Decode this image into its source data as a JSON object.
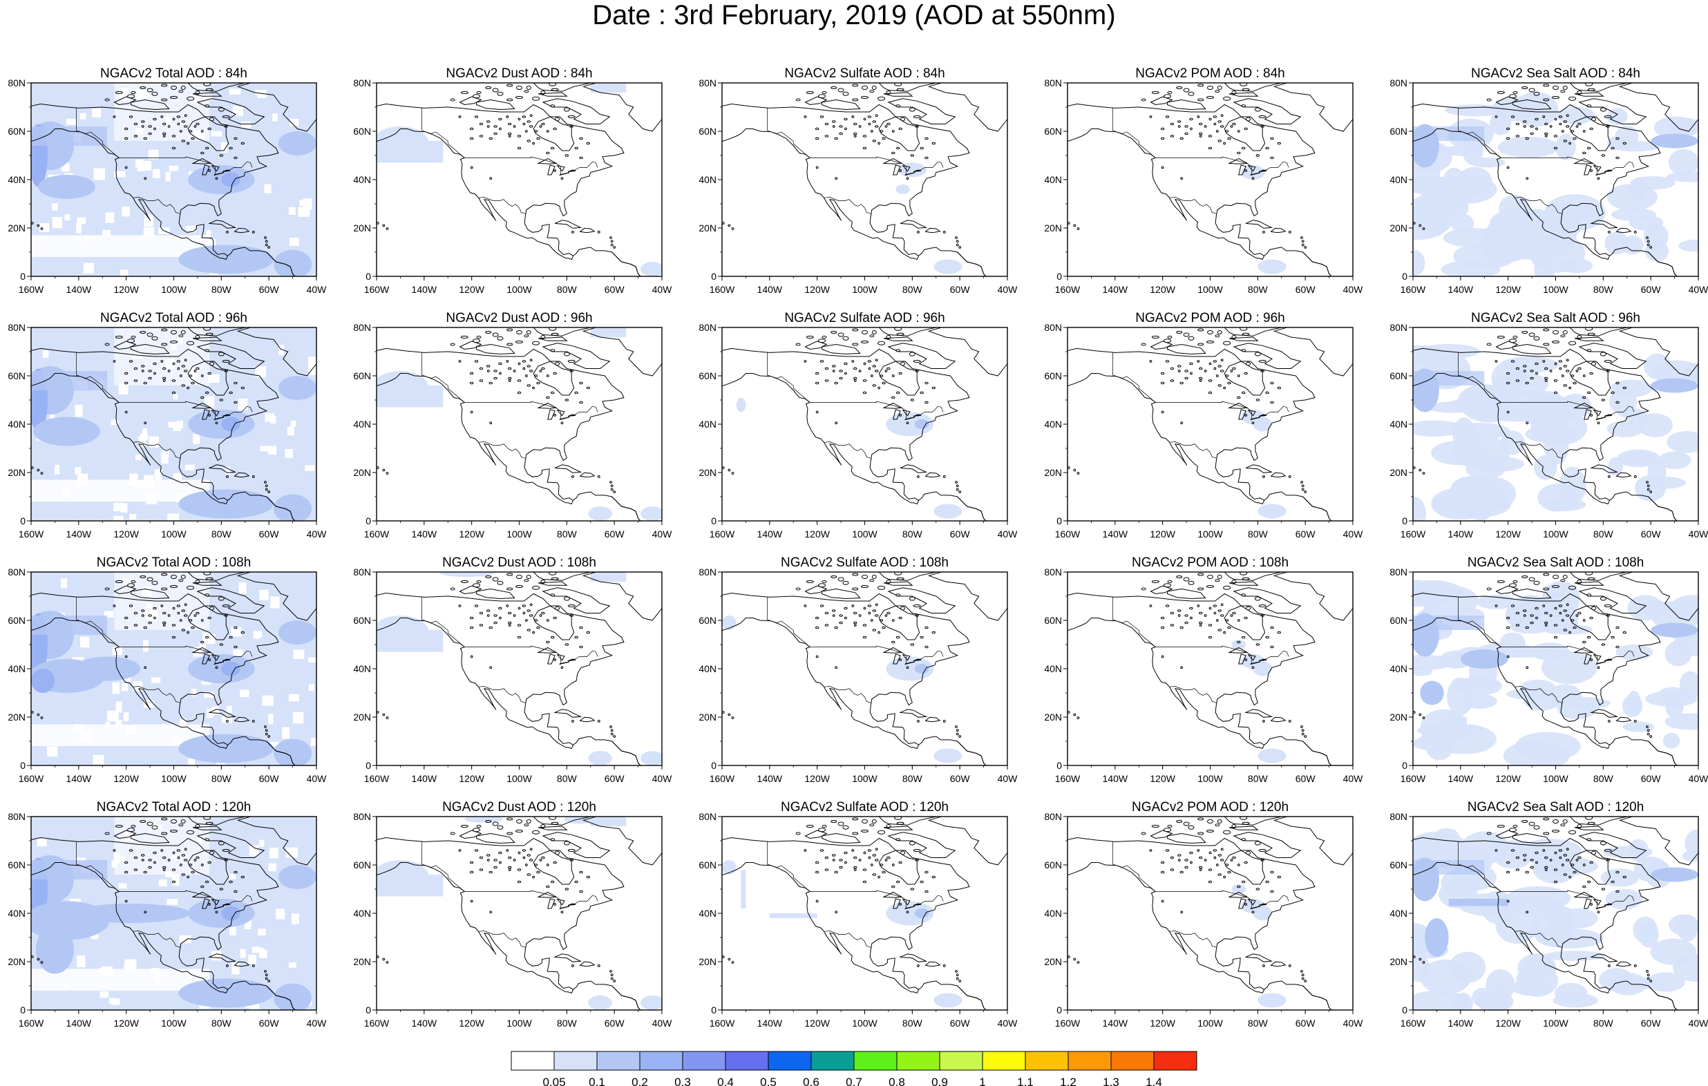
{
  "title": "Date : 3rd February, 2019 (AOD at 550nm)",
  "lat_labels": [
    "80N",
    "60N",
    "40N",
    "20N",
    "0"
  ],
  "lon_labels": [
    "160W",
    "140W",
    "120W",
    "100W",
    "80W",
    "60W",
    "40W"
  ],
  "panels": [
    [
      "NGACv2 Total AOD : 84h",
      "NGACv2 Dust AOD : 84h",
      "NGACv2 Sulfate AOD : 84h",
      "NGACv2 POM AOD : 84h",
      "NGACv2 Sea Salt AOD : 84h"
    ],
    [
      "NGACv2 Total AOD : 96h",
      "NGACv2 Dust AOD : 96h",
      "NGACv2 Sulfate AOD : 96h",
      "NGACv2 POM AOD : 96h",
      "NGACv2 Sea Salt AOD : 96h"
    ],
    [
      "NGACv2 Total AOD : 108h",
      "NGACv2 Dust AOD : 108h",
      "NGACv2 Sulfate AOD : 108h",
      "NGACv2 POM AOD : 108h",
      "NGACv2 Sea Salt AOD : 108h"
    ],
    [
      "NGACv2 Total AOD : 120h",
      "NGACv2 Dust AOD : 120h",
      "NGACv2 Sulfate AOD : 120h",
      "NGACv2 POM AOD : 120h",
      "NGACv2 Sea Salt  AOD : 120h"
    ]
  ],
  "colorbar": {
    "labels": [
      "0.05",
      "0.1",
      "0.2",
      "0.3",
      "0.4",
      "0.5",
      "0.6",
      "0.7",
      "0.8",
      "0.9",
      "1",
      "1.1",
      "1.2",
      "1.3",
      "1.4"
    ],
    "colors": [
      "#ffffff",
      "#d6e2fa",
      "#b3c7f5",
      "#99b2f3",
      "#8296f2",
      "#6670ee",
      "#0d66ef",
      "#0a9f95",
      "#5ef01b",
      "#94f514",
      "#c9f74e",
      "#fdfa0a",
      "#fdc303",
      "#fc9a03",
      "#f97806",
      "#f62d10"
    ]
  },
  "colors": {
    "coast": "#000000",
    "shade_light": "#d6e2fa",
    "shade_mid": "#b3c7f5",
    "shade_dark": "#99b2f3"
  }
}
